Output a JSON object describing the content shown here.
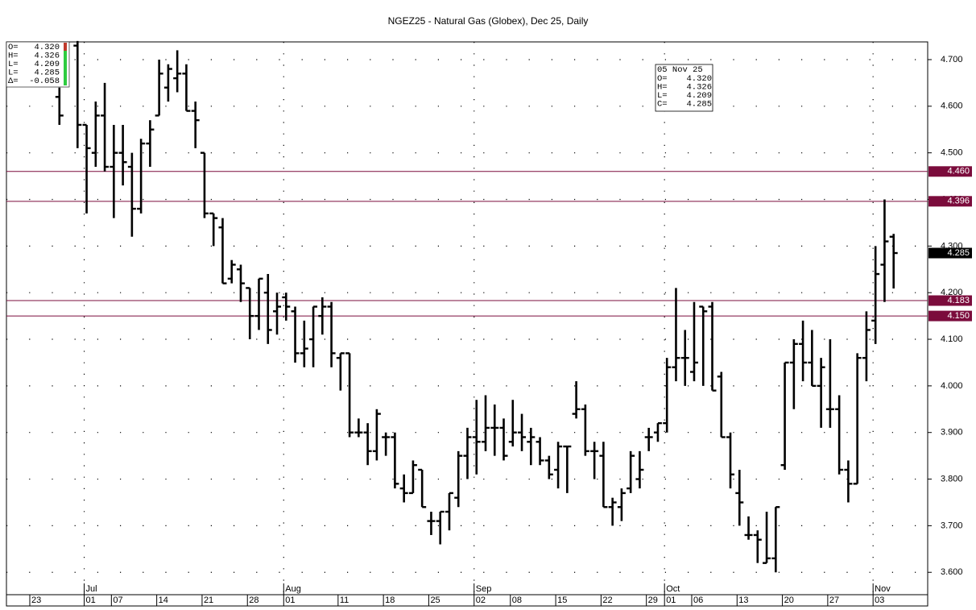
{
  "chart_data": {
    "type": "ohlc",
    "title": "NGEZ25 - Natural Gas (Globex), Dec 25, Daily",
    "categories": [
      "23",
      null,
      null,
      null,
      null,
      null,
      "01",
      null,
      null,
      "07",
      null,
      null,
      null,
      null,
      "14",
      null,
      null,
      null,
      null,
      "21",
      null,
      null,
      null,
      null,
      "28",
      null,
      null,
      null,
      "01",
      null,
      null,
      null,
      null,
      null,
      "11",
      null,
      null,
      null,
      null,
      "18",
      null,
      null,
      null,
      null,
      "25",
      null,
      null,
      null,
      null,
      "02",
      null,
      null,
      null,
      "08",
      null,
      null,
      null,
      null,
      "15",
      null,
      null,
      null,
      null,
      "22",
      null,
      null,
      null,
      null,
      "29",
      null,
      "01",
      null,
      null,
      "06",
      null,
      null,
      null,
      null,
      "13",
      null,
      null,
      null,
      null,
      "20",
      null,
      null,
      null,
      null,
      "27",
      null,
      null,
      null,
      null,
      "03",
      null,
      null
    ],
    "month_labels": [
      null,
      null,
      null,
      null,
      null,
      null,
      "Jul",
      null,
      null,
      null,
      null,
      null,
      null,
      null,
      null,
      null,
      null,
      null,
      null,
      null,
      null,
      null,
      null,
      null,
      null,
      null,
      null,
      null,
      "Aug",
      null,
      null,
      null,
      null,
      null,
      null,
      null,
      null,
      null,
      null,
      null,
      null,
      null,
      null,
      null,
      null,
      null,
      null,
      null,
      null,
      "Sep",
      null,
      null,
      null,
      null,
      null,
      null,
      null,
      null,
      null,
      null,
      null,
      null,
      null,
      null,
      null,
      null,
      null,
      null,
      null,
      null,
      "Oct",
      null,
      null,
      null,
      null,
      null,
      null,
      null,
      null,
      null,
      null,
      null,
      null,
      null,
      null,
      null,
      null,
      null,
      null,
      null,
      null,
      null,
      null,
      "Nov",
      null,
      null
    ],
    "open": [
      null,
      null,
      null,
      4.62,
      null,
      4.73,
      4.56,
      4.5,
      4.58,
      4.47,
      4.5,
      4.47,
      4.38,
      4.52,
      4.58,
      4.64,
      4.66,
      4.67,
      4.59,
      4.5,
      4.37,
      4.34,
      4.23,
      4.25,
      4.21,
      4.15,
      4.2,
      4.16,
      4.19,
      4.16,
      4.07,
      4.1,
      4.15,
      4.17,
      4.06,
      4.07,
      3.9,
      3.9,
      3.86,
      3.89,
      3.89,
      3.78,
      3.77,
      3.82,
      3.71,
      3.71,
      3.73,
      3.76,
      3.85,
      3.89,
      3.88,
      3.91,
      3.91,
      3.88,
      3.9,
      3.88,
      3.88,
      3.84,
      3.82,
      3.87,
      3.94,
      3.95,
      3.86,
      3.85,
      3.74,
      3.74,
      3.78,
      3.8,
      3.89,
      3.9,
      3.92,
      4.04,
      4.06,
      4.03,
      4.17,
      4.17,
      4.02,
      3.89,
      3.77,
      3.68,
      3.68,
      3.62,
      3.63,
      3.83,
      4.05,
      4.09,
      4.05,
      4.0,
      3.95,
      3.95,
      3.82,
      3.79,
      4.06,
      4.14,
      4.26,
      4.32
    ],
    "high": [
      null,
      null,
      null,
      4.64,
      null,
      4.74,
      4.56,
      4.61,
      4.65,
      4.56,
      4.56,
      4.5,
      4.53,
      4.57,
      4.7,
      4.69,
      4.72,
      4.69,
      4.61,
      4.5,
      4.37,
      4.36,
      4.27,
      4.26,
      4.21,
      4.23,
      4.24,
      4.2,
      4.2,
      4.17,
      4.14,
      4.17,
      4.19,
      4.18,
      4.07,
      4.07,
      3.93,
      3.92,
      3.95,
      3.9,
      3.9,
      3.81,
      3.84,
      3.82,
      3.73,
      3.73,
      3.77,
      3.86,
      3.91,
      3.97,
      3.98,
      3.96,
      3.93,
      3.97,
      3.94,
      3.91,
      3.89,
      3.85,
      3.88,
      3.87,
      4.01,
      3.96,
      3.88,
      3.88,
      3.76,
      3.78,
      3.86,
      3.86,
      3.91,
      3.92,
      4.06,
      4.21,
      4.12,
      4.18,
      4.17,
      4.18,
      4.03,
      3.9,
      3.82,
      3.72,
      3.69,
      3.73,
      3.74,
      4.05,
      4.1,
      4.14,
      4.12,
      4.06,
      4.1,
      3.98,
      3.84,
      4.07,
      4.16,
      4.3,
      4.4,
      4.326
    ],
    "low": [
      null,
      null,
      null,
      4.56,
      null,
      4.51,
      4.37,
      4.47,
      4.46,
      4.36,
      4.43,
      4.32,
      4.37,
      4.47,
      4.58,
      4.61,
      4.63,
      4.59,
      4.51,
      4.36,
      4.3,
      4.22,
      4.22,
      4.18,
      4.1,
      4.12,
      4.09,
      4.11,
      4.14,
      4.05,
      4.04,
      4.04,
      4.11,
      4.04,
      3.99,
      3.89,
      3.89,
      3.83,
      3.84,
      3.85,
      3.78,
      3.75,
      3.77,
      3.74,
      3.68,
      3.66,
      3.69,
      3.74,
      3.8,
      3.81,
      3.86,
      3.85,
      3.84,
      3.87,
      3.86,
      3.83,
      3.83,
      3.8,
      3.78,
      3.77,
      3.93,
      3.85,
      3.8,
      3.74,
      3.7,
      3.71,
      3.77,
      3.78,
      3.86,
      3.88,
      3.9,
      4.01,
      4.0,
      4.01,
      4.0,
      3.99,
      3.89,
      3.78,
      3.7,
      3.67,
      3.62,
      3.62,
      3.6,
      3.82,
      3.95,
      4.01,
      4.0,
      3.91,
      3.91,
      3.81,
      3.75,
      3.79,
      4.01,
      4.09,
      4.18,
      4.209
    ],
    "close": [
      null,
      null,
      null,
      4.58,
      null,
      4.56,
      4.51,
      4.58,
      4.47,
      4.5,
      4.48,
      4.38,
      4.52,
      4.55,
      4.67,
      4.68,
      4.67,
      4.59,
      4.57,
      4.37,
      4.36,
      4.22,
      4.26,
      4.22,
      4.15,
      4.23,
      4.12,
      4.17,
      4.17,
      4.07,
      4.08,
      4.17,
      4.17,
      4.07,
      4.07,
      3.9,
      3.9,
      3.86,
      3.94,
      3.89,
      3.79,
      3.77,
      3.83,
      3.74,
      3.71,
      3.73,
      3.77,
      3.85,
      3.89,
      3.88,
      3.91,
      3.91,
      3.85,
      3.9,
      3.89,
      3.89,
      3.84,
      3.81,
      3.87,
      3.87,
      3.95,
      3.86,
      3.86,
      3.74,
      3.75,
      3.77,
      3.85,
      3.82,
      3.89,
      3.92,
      4.04,
      4.06,
      4.06,
      4.05,
      4.16,
      3.99,
      3.89,
      3.81,
      3.75,
      3.68,
      3.67,
      3.63,
      3.74,
      4.05,
      4.09,
      4.05,
      4.0,
      4.04,
      3.95,
      3.82,
      3.79,
      4.06,
      4.12,
      4.24,
      4.31,
      4.285
    ],
    "color": "#000000",
    "ylim": [
      3.552,
      4.738
    ],
    "yticks": [
      {
        "value": 3.6,
        "label": "3.600"
      },
      {
        "value": 3.7,
        "label": "3.700"
      },
      {
        "value": 3.8,
        "label": "3.800"
      },
      {
        "value": 3.9,
        "label": "3.900"
      },
      {
        "value": 4.0,
        "label": "4.000"
      },
      {
        "value": 4.1,
        "label": "4.100"
      },
      {
        "value": 4.2,
        "label": "4.200"
      },
      {
        "value": 4.3,
        "label": "4.300"
      },
      {
        "value": 4.4,
        "label": "4.400"
      },
      {
        "value": 4.5,
        "label": "4.500"
      },
      {
        "value": 4.6,
        "label": "4.600"
      },
      {
        "value": 4.7,
        "label": "4.700"
      }
    ],
    "grid": true,
    "levels": [
      {
        "value": 4.46,
        "label": "4.460"
      },
      {
        "value": 4.396,
        "label": "4.396"
      },
      {
        "value": 4.183,
        "label": "4.183"
      },
      {
        "value": 4.15,
        "label": "4.150"
      }
    ],
    "level_color": "#7b0c3c",
    "last_price": {
      "value": 4.285,
      "label": "4.285"
    },
    "info_panel": [
      [
        "O=",
        "4.320"
      ],
      [
        "H=",
        "4.326"
      ],
      [
        "L=",
        "4.209"
      ],
      [
        "L=",
        "4.285"
      ],
      [
        "Δ=",
        "-0.058"
      ]
    ],
    "data_box": {
      "date": "05 Nov 25",
      "rows": [
        [
          "O=",
          "4.320"
        ],
        [
          "H=",
          "4.326"
        ],
        [
          "L=",
          "4.209"
        ],
        [
          "C=",
          "4.285"
        ]
      ]
    }
  }
}
